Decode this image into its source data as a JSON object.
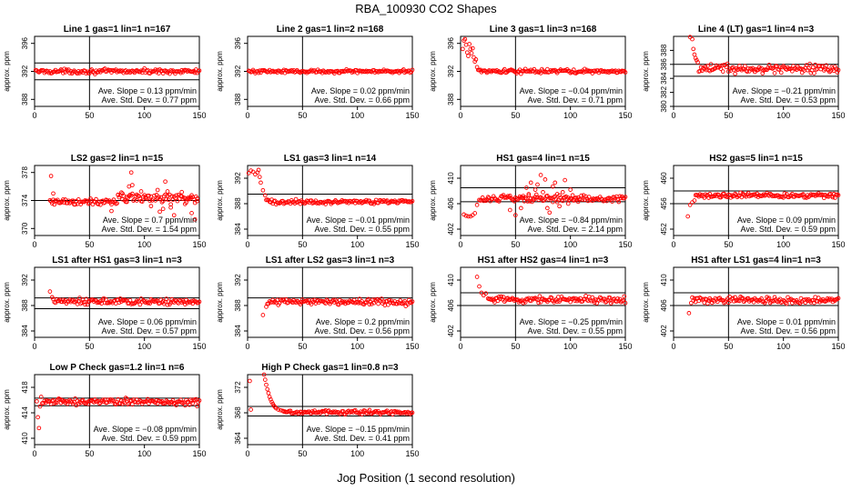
{
  "page": {
    "title": "RBA_100930  CO2 Shapes",
    "xlabel": "Jog Position (1 second resolution)"
  },
  "style": {
    "point_color": "#ff0000",
    "frame_color": "#000000"
  },
  "chart_data": [
    {
      "type": "scatter",
      "title": "Line 1 gas=1 lin=1 n=167",
      "ylabel": "approx. ppm",
      "xlim": [
        0,
        150
      ],
      "ylim": [
        387,
        397
      ],
      "xticks": [
        0,
        50,
        100,
        150
      ],
      "yticks": [
        388,
        392,
        396
      ],
      "hlines": [
        390.8,
        393.2
      ],
      "vline": 50,
      "annotations": [
        "Ave. Slope = 0.13 ppm/min",
        "Ave. Std. Dev. = 0.77 ppm"
      ],
      "series": [
        {
          "kind": "flat",
          "x_start": 1,
          "x_end": 150,
          "level": 392.0,
          "noise": 0.15
        }
      ]
    },
    {
      "type": "scatter",
      "title": "Line 2 gas=1 lin=2 n=168",
      "ylabel": "approx. ppm",
      "xlim": [
        0,
        150
      ],
      "ylim": [
        387,
        397
      ],
      "xticks": [
        0,
        50,
        100,
        150
      ],
      "yticks": [
        388,
        392,
        396
      ],
      "hlines": [],
      "vline": 50,
      "annotations": [
        "Ave. Slope = 0.02 ppm/min",
        "Ave. Std. Dev. = 0.66 ppm"
      ],
      "series": [
        {
          "kind": "flat",
          "x_start": 1,
          "x_end": 150,
          "level": 392.0,
          "noise": 0.12
        }
      ]
    },
    {
      "type": "scatter",
      "title": "Line 3 gas=1 lin=3 n=168",
      "ylabel": "approx. ppm",
      "xlim": [
        0,
        150
      ],
      "ylim": [
        387,
        397
      ],
      "xticks": [
        0,
        50,
        100,
        150
      ],
      "yticks": [
        388,
        392,
        396
      ],
      "hlines": [],
      "vline": 50,
      "annotations": [
        "Ave. Slope = −0.04 ppm/min",
        "Ave. Std. Dev. = 0.71 ppm"
      ],
      "series": [
        {
          "kind": "points",
          "points": [
            [
              2,
              395.2
            ],
            [
              3,
              396.4
            ],
            [
              4,
              396.6
            ],
            [
              5,
              395.8
            ],
            [
              6,
              394.7
            ],
            [
              7,
              394.2
            ],
            [
              8,
              395.9
            ],
            [
              9,
              395.2
            ],
            [
              10,
              394.6
            ],
            [
              11,
              395.3
            ],
            [
              12,
              394.0
            ],
            [
              13,
              393.4
            ],
            [
              14,
              393.7
            ],
            [
              15,
              392.6
            ],
            [
              16,
              392.2
            ]
          ]
        },
        {
          "kind": "flat",
          "x_start": 17,
          "x_end": 150,
          "level": 392.0,
          "noise": 0.15
        }
      ]
    },
    {
      "type": "scatter",
      "title": "Line 4 (LT) gas=1 lin=4 n=3",
      "ylabel": "approx. ppm",
      "xlim": [
        0,
        150
      ],
      "ylim": [
        380,
        390
      ],
      "xticks": [
        0,
        50,
        100,
        150
      ],
      "yticks": [
        380,
        382,
        384,
        386,
        388
      ],
      "hlines": [
        384.3,
        386.0
      ],
      "vline": 50,
      "annotations": [
        "Ave. Slope = −0.21 ppm/min",
        "Ave. Std. Dev. = 0.53 ppm"
      ],
      "series": [
        {
          "kind": "points",
          "points": [
            [
              15,
              389.9
            ],
            [
              17,
              389.6
            ],
            [
              18,
              388.2
            ],
            [
              19,
              387.4
            ],
            [
              20,
              386.9
            ],
            [
              21,
              386.6
            ],
            [
              22,
              386.3
            ]
          ]
        },
        {
          "kind": "flat",
          "x_start": 23,
          "x_end": 150,
          "level": 385.4,
          "noise": 0.3
        }
      ]
    },
    {
      "type": "scatter",
      "title": "LS2 gas=2 lin=1 n=15",
      "ylabel": "approx. ppm",
      "xlim": [
        0,
        150
      ],
      "ylim": [
        369,
        379
      ],
      "xticks": [
        0,
        50,
        100,
        150
      ],
      "yticks": [
        370,
        374,
        378
      ],
      "hlines": [
        374.0
      ],
      "vline": 50,
      "annotations": [
        "Ave. Slope = 0.7 ppm/min",
        "Ave. Std. Dev. = 1.54 ppm"
      ],
      "series": [
        {
          "kind": "flat",
          "x_start": 14,
          "x_end": 75,
          "level": 373.8,
          "noise": 0.25
        },
        {
          "kind": "points",
          "points": [
            [
              15,
              377.5
            ],
            [
              17,
              375.0
            ],
            [
              70,
              372.5
            ],
            [
              76,
              374.8
            ],
            [
              80,
              375.0
            ],
            [
              84,
              374.5
            ],
            [
              86,
              376.0
            ],
            [
              88,
              378.0
            ],
            [
              89,
              376.2
            ],
            [
              93,
              374.0
            ],
            [
              97,
              375.3
            ],
            [
              101,
              374.5
            ],
            [
              106,
              373.2
            ],
            [
              112,
              375.5
            ],
            [
              114,
              372.4
            ],
            [
              117,
              372.8
            ],
            [
              119,
              376.7
            ],
            [
              121,
              375.3
            ],
            [
              124,
              373.0
            ],
            [
              127,
              371.9
            ],
            [
              134,
              375.2
            ],
            [
              137,
              373.5
            ],
            [
              140,
              374.4
            ],
            [
              143,
              372.2
            ],
            [
              146,
              371.3
            ],
            [
              148,
              373.9
            ]
          ]
        },
        {
          "kind": "flat",
          "x_start": 76,
          "x_end": 148,
          "level": 374.4,
          "noise": 0.4
        }
      ]
    },
    {
      "type": "scatter",
      "title": "LS1 gas=3 lin=1 n=14",
      "ylabel": "approx. ppm",
      "xlim": [
        0,
        150
      ],
      "ylim": [
        383,
        394
      ],
      "xticks": [
        0,
        50,
        100,
        150
      ],
      "yticks": [
        384,
        388,
        392
      ],
      "hlines": [
        389.5
      ],
      "vline": 50,
      "annotations": [
        "Ave. Slope = −0.01 ppm/min",
        "Ave. Std. Dev. = 0.55 ppm"
      ],
      "series": [
        {
          "kind": "points",
          "points": [
            [
              1,
              392.8
            ],
            [
              3,
              393.2
            ],
            [
              5,
              393.0
            ],
            [
              7,
              392.6
            ],
            [
              9,
              392.9
            ],
            [
              10,
              393.3
            ],
            [
              11,
              392.2
            ],
            [
              12,
              391.3
            ],
            [
              14,
              390.1
            ],
            [
              16,
              389.3
            ]
          ]
        },
        {
          "kind": "flat",
          "x_start": 17,
          "x_end": 150,
          "level": 388.3,
          "noise": 0.2
        }
      ]
    },
    {
      "type": "scatter",
      "title": "HS1 gas=4 lin=1 n=15",
      "ylabel": "approx. ppm",
      "xlim": [
        0,
        150
      ],
      "ylim": [
        401,
        412
      ],
      "xticks": [
        0,
        50,
        100,
        150
      ],
      "yticks": [
        402,
        406,
        410
      ],
      "hlines": [
        406.3,
        408.5
      ],
      "vline": 50,
      "annotations": [
        "Ave. Slope = −0.84 ppm/min",
        "Ave. Std. Dev. = 2.14 ppm"
      ],
      "series": [
        {
          "kind": "points",
          "points": [
            [
              3,
              404.3
            ],
            [
              5,
              404.1
            ],
            [
              7,
              404.0
            ],
            [
              9,
              404.0
            ],
            [
              11,
              404.2
            ],
            [
              13,
              404.5
            ],
            [
              15,
              405.8
            ],
            [
              17,
              406.6
            ]
          ]
        },
        {
          "kind": "flat",
          "x_start": 18,
          "x_end": 150,
          "level": 406.8,
          "noise": 0.25
        },
        {
          "kind": "points",
          "points": [
            [
              45,
              405.0
            ],
            [
              50,
              404.2
            ],
            [
              55,
              405.3
            ],
            [
              57,
              407.2
            ],
            [
              60,
              408.5
            ],
            [
              62,
              407.5
            ],
            [
              64,
              409.3
            ],
            [
              66,
              406.6
            ],
            [
              68,
              408.2
            ],
            [
              70,
              409.0
            ],
            [
              73,
              410.5
            ],
            [
              75,
              407.8
            ],
            [
              77,
              409.8
            ],
            [
              79,
              405.3
            ],
            [
              81,
              404.6
            ],
            [
              84,
              408.7
            ],
            [
              86,
              409.3
            ],
            [
              88,
              407.5
            ],
            [
              90,
              405.6
            ],
            [
              93,
              407.8
            ],
            [
              95,
              409.7
            ],
            [
              98,
              406.0
            ],
            [
              100,
              408.2
            ],
            [
              103,
              406.5
            ],
            [
              107,
              406.3
            ]
          ]
        }
      ]
    },
    {
      "type": "scatter",
      "title": "HS2 gas=5 lin=1 n=15",
      "ylabel": "approx. ppm",
      "xlim": [
        0,
        150
      ],
      "ylim": [
        451,
        462
      ],
      "xticks": [
        0,
        50,
        100,
        150
      ],
      "yticks": [
        452,
        456,
        460
      ],
      "hlines": [
        456.0,
        458.0
      ],
      "vline": 50,
      "annotations": [
        "Ave. Slope = 0.09 ppm/min",
        "Ave. Std. Dev. = 0.59 ppm"
      ],
      "series": [
        {
          "kind": "points",
          "points": [
            [
              13,
              454.0
            ],
            [
              15,
              455.8
            ],
            [
              17,
              456.2
            ],
            [
              19,
              456.5
            ]
          ]
        },
        {
          "kind": "flat",
          "x_start": 20,
          "x_end": 150,
          "level": 457.3,
          "noise": 0.2
        }
      ]
    },
    {
      "type": "scatter",
      "title": "LS1 after HS1 gas=3 lin=1 n=3",
      "ylabel": "approx. ppm",
      "xlim": [
        0,
        150
      ],
      "ylim": [
        383,
        394
      ],
      "xticks": [
        0,
        50,
        100,
        150
      ],
      "yticks": [
        384,
        388,
        392
      ],
      "hlines": [
        387.5,
        389.2
      ],
      "vline": 50,
      "annotations": [
        "Ave. Slope = 0.06 ppm/min",
        "Ave. Std. Dev. = 0.57 ppm"
      ],
      "series": [
        {
          "kind": "points",
          "points": [
            [
              14,
              390.2
            ],
            [
              16,
              389.3
            ]
          ]
        },
        {
          "kind": "flat",
          "x_start": 17,
          "x_end": 150,
          "level": 388.6,
          "noise": 0.25
        }
      ]
    },
    {
      "type": "scatter",
      "title": "LS1 after LS2 gas=3 lin=1 n=3",
      "ylabel": "approx. ppm",
      "xlim": [
        0,
        150
      ],
      "ylim": [
        383,
        394
      ],
      "xticks": [
        0,
        50,
        100,
        150
      ],
      "yticks": [
        384,
        388,
        392
      ],
      "hlines": [
        389.2
      ],
      "vline": 50,
      "annotations": [
        "Ave. Slope = 0.2 ppm/min",
        "Ave. Std. Dev. = 0.56 ppm"
      ],
      "series": [
        {
          "kind": "points",
          "points": [
            [
              14,
              386.5
            ],
            [
              17,
              387.8
            ]
          ]
        },
        {
          "kind": "flat",
          "x_start": 18,
          "x_end": 150,
          "level": 388.5,
          "noise": 0.25
        }
      ]
    },
    {
      "type": "scatter",
      "title": "HS1 after HS2 gas=4 lin=1 n=3",
      "ylabel": "approx. ppm",
      "xlim": [
        0,
        150
      ],
      "ylim": [
        401,
        412
      ],
      "xticks": [
        0,
        50,
        100,
        150
      ],
      "yticks": [
        402,
        406,
        410
      ],
      "hlines": [
        406.0,
        408.0
      ],
      "vline": 50,
      "annotations": [
        "Ave. Slope = −0.25 ppm/min",
        "Ave. Std. Dev. = 0.55 ppm"
      ],
      "series": [
        {
          "kind": "points",
          "points": [
            [
              15,
              410.5
            ],
            [
              17,
              409.0
            ],
            [
              19,
              408.0
            ],
            [
              21,
              407.6
            ],
            [
              23,
              407.9
            ],
            [
              25,
              407.1
            ]
          ]
        },
        {
          "kind": "flat",
          "x_start": 26,
          "x_end": 150,
          "level": 406.9,
          "noise": 0.25
        }
      ]
    },
    {
      "type": "scatter",
      "title": "HS1 after LS1 gas=4 lin=1 n=3",
      "ylabel": "approx. ppm",
      "xlim": [
        0,
        150
      ],
      "ylim": [
        401,
        412
      ],
      "xticks": [
        0,
        50,
        100,
        150
      ],
      "yticks": [
        402,
        406,
        410
      ],
      "hlines": [
        406.0,
        408.0
      ],
      "vline": 50,
      "annotations": [
        "Ave. Slope = 0.01 ppm/min",
        "Ave. Std. Dev. = 0.56 ppm"
      ],
      "series": [
        {
          "kind": "points",
          "points": [
            [
              14,
              404.8
            ],
            [
              16,
              406.4
            ]
          ]
        },
        {
          "kind": "flat",
          "x_start": 17,
          "x_end": 150,
          "level": 406.8,
          "noise": 0.25
        }
      ]
    },
    {
      "type": "scatter",
      "title": "Low P Check gas=1.2 lin=1 n=6",
      "ylabel": "approx. ppm",
      "xlim": [
        0,
        150
      ],
      "ylim": [
        409,
        420
      ],
      "xticks": [
        0,
        50,
        100,
        150
      ],
      "yticks": [
        410,
        414,
        418
      ],
      "hlines": [
        415.1,
        416.3
      ],
      "vline": 50,
      "annotations": [
        "Ave. Slope = −0.08 ppm/min",
        "Ave. Std. Dev. = 0.59 ppm"
      ],
      "series": [
        {
          "kind": "points",
          "points": [
            [
              2,
              415.8
            ],
            [
              3,
              413.3
            ],
            [
              4,
              411.6
            ],
            [
              5,
              415.0
            ],
            [
              6,
              416.5
            ]
          ]
        },
        {
          "kind": "flat",
          "x_start": 7,
          "x_end": 150,
          "level": 415.7,
          "noise": 0.25
        }
      ]
    },
    {
      "type": "scatter",
      "title": "High P Check gas=1 lin=0.8 n=3",
      "ylabel": "approx. ppm",
      "xlim": [
        0,
        150
      ],
      "ylim": [
        363,
        374
      ],
      "xticks": [
        0,
        50,
        100,
        150
      ],
      "yticks": [
        364,
        368,
        372
      ],
      "hlines": [
        367.5,
        369.0
      ],
      "vline": 50,
      "annotations": [
        "Ave. Slope = −0.15 ppm/min",
        "Ave. Std. Dev. = 0.41 ppm"
      ],
      "series": [
        {
          "kind": "points",
          "points": [
            [
              2,
              373.0
            ],
            [
              3,
              368.5
            ],
            [
              15,
              374.0
            ],
            [
              16,
              373.2
            ],
            [
              17,
              372.4
            ],
            [
              18,
              371.7
            ],
            [
              19,
              371.1
            ],
            [
              20,
              370.5
            ],
            [
              21,
              370.1
            ],
            [
              22,
              369.7
            ],
            [
              23,
              369.4
            ],
            [
              24,
              369.1
            ],
            [
              25,
              368.9
            ],
            [
              26,
              368.7
            ],
            [
              28,
              368.5
            ],
            [
              30,
              368.4
            ],
            [
              32,
              368.3
            ]
          ]
        },
        {
          "kind": "flat",
          "x_start": 33,
          "x_end": 150,
          "level": 368.1,
          "noise": 0.15
        }
      ]
    }
  ]
}
